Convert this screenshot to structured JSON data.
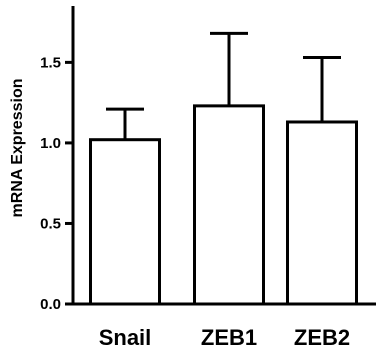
{
  "chart_data": {
    "type": "bar",
    "categories": [
      "Snail",
      "ZEB1",
      "ZEB2"
    ],
    "values": [
      1.02,
      1.23,
      1.13
    ],
    "error_upper": [
      1.21,
      1.68,
      1.53
    ],
    "ylabel": "mRNA Expression",
    "ylim": [
      0,
      1.85
    ],
    "yticks": [
      0.0,
      0.5,
      1.0,
      1.5
    ],
    "ytick_labels": [
      "0.0",
      "0.5",
      "1.0",
      "1.5"
    ],
    "grid": false,
    "bar_fill": "#ffffff",
    "bar_stroke": "#000000"
  }
}
